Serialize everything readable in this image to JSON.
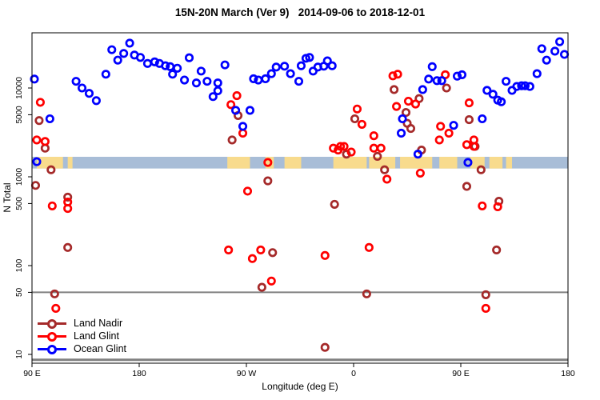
{
  "title": "15N-20N March (Ver 9)   2014-09-06 to 2018-12-01",
  "colors": {
    "land_nadir": "#A52A2A",
    "land_glint": "#FF0000",
    "ocean_glint": "#0000FF",
    "band_ocean": "#A8BDD7",
    "band_land": "#F8DB8D",
    "rule_gray": "#808080",
    "axis_black": "#000000"
  },
  "legend": {
    "items": [
      {
        "label": "Land Nadir",
        "series": "land_nadir"
      },
      {
        "label": "Land Glint",
        "series": "land_glint"
      },
      {
        "label": "Ocean Glint",
        "series": "ocean_glint"
      }
    ]
  },
  "chart_data": {
    "type": "scatter",
    "title": "15N-20N March (Ver 9)   2014-09-06 to 2018-12-01",
    "xlabel": "Longitude (deg E)",
    "ylabel": "N Total",
    "x_axis": {
      "note": "longitude displayed wrapping eastward from 90E; axis units run 90..630",
      "range": [
        90,
        540
      ],
      "ticks": [
        {
          "v": 90,
          "label": "90 E"
        },
        {
          "v": 180,
          "label": "180"
        },
        {
          "v": 270,
          "label": "90 W"
        },
        {
          "v": 360,
          "label": "0"
        },
        {
          "v": 450,
          "label": "90 E"
        },
        {
          "v": 540,
          "label": "180"
        }
      ]
    },
    "y_axis": {
      "scale": "log",
      "range": [
        8,
        42000
      ],
      "ticks": [
        {
          "v": 10000,
          "label": "10000"
        },
        {
          "v": 5000,
          "label": "5000"
        },
        {
          "v": 1000,
          "label": "1000"
        },
        {
          "v": 500,
          "label": "500"
        },
        {
          "v": 100,
          "label": "100"
        },
        {
          "v": 50,
          "label": "50"
        },
        {
          "v": 10,
          "label": "10"
        }
      ]
    },
    "rules": [
      {
        "n": 50,
        "width": 2
      },
      {
        "n": 8.7,
        "width": 3
      }
    ],
    "map_band": {
      "n_min": 1240,
      "n_max": 1680,
      "ocean_color_key": "band_ocean",
      "land_color_key": "band_land",
      "land_segments_lon": [
        [
          94,
          116
        ],
        [
          120,
          124
        ],
        [
          254,
          273
        ],
        [
          286,
          293
        ],
        [
          302,
          316
        ],
        [
          343,
          371
        ],
        [
          373,
          395
        ],
        [
          399,
          426
        ],
        [
          432,
          447
        ],
        [
          458,
          470
        ],
        [
          474,
          485
        ],
        [
          488,
          493
        ]
      ]
    },
    "series": [
      {
        "name": "Land Nadir",
        "color_key": "land_nadir",
        "points": [
          [
            93,
            800
          ],
          [
            96,
            4300
          ],
          [
            101,
            2100
          ],
          [
            106,
            1200
          ],
          [
            109,
            48
          ],
          [
            120,
            590
          ],
          [
            120,
            160
          ],
          [
            258,
            2600
          ],
          [
            263,
            4900
          ],
          [
            283,
            57
          ],
          [
            288,
            900
          ],
          [
            292,
            140
          ],
          [
            336,
            12
          ],
          [
            344,
            490
          ],
          [
            354,
            1800
          ],
          [
            361,
            4500
          ],
          [
            371,
            48
          ],
          [
            380,
            1700
          ],
          [
            386,
            1200
          ],
          [
            394,
            9600
          ],
          [
            404,
            5300
          ],
          [
            405,
            4000
          ],
          [
            408,
            3500
          ],
          [
            415,
            7600
          ],
          [
            417,
            2000
          ],
          [
            438,
            10000
          ],
          [
            455,
            780
          ],
          [
            457,
            4400
          ],
          [
            462,
            2200
          ],
          [
            467,
            1200
          ],
          [
            471,
            47
          ],
          [
            480,
            150
          ],
          [
            482,
            530
          ]
        ]
      },
      {
        "name": "Land Glint",
        "color_key": "land_glint",
        "points": [
          [
            94,
            2600
          ],
          [
            97,
            6900
          ],
          [
            101,
            2500
          ],
          [
            107,
            470
          ],
          [
            110,
            33
          ],
          [
            120,
            520
          ],
          [
            120,
            440
          ],
          [
            255,
            150
          ],
          [
            257,
            6500
          ],
          [
            262,
            8200
          ],
          [
            267,
            3100
          ],
          [
            271,
            690
          ],
          [
            275,
            120
          ],
          [
            282,
            150
          ],
          [
            288,
            1450
          ],
          [
            291,
            67
          ],
          [
            336,
            130
          ],
          [
            343,
            2100
          ],
          [
            347,
            2000
          ],
          [
            349,
            2200
          ],
          [
            352,
            2200
          ],
          [
            358,
            1900
          ],
          [
            363,
            5800
          ],
          [
            367,
            3900
          ],
          [
            373,
            160
          ],
          [
            377,
            2900
          ],
          [
            377,
            2100
          ],
          [
            383,
            2100
          ],
          [
            388,
            940
          ],
          [
            393,
            13700
          ],
          [
            396,
            6200
          ],
          [
            397,
            14300
          ],
          [
            406,
            7100
          ],
          [
            412,
            6600
          ],
          [
            416,
            1100
          ],
          [
            432,
            2600
          ],
          [
            433,
            3700
          ],
          [
            437,
            14100
          ],
          [
            440,
            3100
          ],
          [
            455,
            2300
          ],
          [
            457,
            6800
          ],
          [
            461,
            2600
          ],
          [
            461,
            2200
          ],
          [
            468,
            470
          ],
          [
            471,
            33
          ],
          [
            481,
            460
          ]
        ]
      },
      {
        "name": "Ocean Glint",
        "color_key": "ocean_glint",
        "points": [
          [
            92,
            12600
          ],
          [
            94,
            1480
          ],
          [
            105,
            4500
          ],
          [
            127,
            11900
          ],
          [
            132,
            10000
          ],
          [
            138,
            8700
          ],
          [
            144,
            7200
          ],
          [
            152,
            14300
          ],
          [
            157,
            27000
          ],
          [
            162,
            20600
          ],
          [
            167,
            24500
          ],
          [
            172,
            32000
          ],
          [
            176,
            23500
          ],
          [
            181,
            22100
          ],
          [
            187,
            18900
          ],
          [
            193,
            19700
          ],
          [
            197,
            18900
          ],
          [
            202,
            17800
          ],
          [
            206,
            17400
          ],
          [
            208,
            14300
          ],
          [
            212,
            16700
          ],
          [
            218,
            12300
          ],
          [
            222,
            21900
          ],
          [
            228,
            11400
          ],
          [
            232,
            15500
          ],
          [
            237,
            11900
          ],
          [
            242,
            8000
          ],
          [
            246,
            11400
          ],
          [
            246,
            9300
          ],
          [
            252,
            18200
          ],
          [
            261,
            5600
          ],
          [
            267,
            3700
          ],
          [
            273,
            5600
          ],
          [
            276,
            12700
          ],
          [
            280,
            12300
          ],
          [
            286,
            12700
          ],
          [
            291,
            14500
          ],
          [
            295,
            17200
          ],
          [
            302,
            17600
          ],
          [
            307,
            14500
          ],
          [
            314,
            11900
          ],
          [
            316,
            17800
          ],
          [
            320,
            21600
          ],
          [
            323,
            22100
          ],
          [
            326,
            15500
          ],
          [
            330,
            17200
          ],
          [
            335,
            17600
          ],
          [
            338,
            20200
          ],
          [
            342,
            17800
          ],
          [
            400,
            3100
          ],
          [
            401,
            4500
          ],
          [
            414,
            1800
          ],
          [
            418,
            9600
          ],
          [
            423,
            12600
          ],
          [
            426,
            17400
          ],
          [
            430,
            12100
          ],
          [
            434,
            12100
          ],
          [
            444,
            3800
          ],
          [
            447,
            13600
          ],
          [
            451,
            14100
          ],
          [
            456,
            1450
          ],
          [
            468,
            4500
          ],
          [
            472,
            9400
          ],
          [
            477,
            8500
          ],
          [
            481,
            7300
          ],
          [
            484,
            7000
          ],
          [
            488,
            11900
          ],
          [
            493,
            9400
          ],
          [
            497,
            10400
          ],
          [
            501,
            10600
          ],
          [
            504,
            10600
          ],
          [
            508,
            10400
          ],
          [
            514,
            14500
          ],
          [
            518,
            27700
          ],
          [
            522,
            20600
          ],
          [
            529,
            26000
          ],
          [
            533,
            33200
          ],
          [
            537,
            23900
          ]
        ]
      }
    ],
    "legend_position": "bottom-left"
  }
}
